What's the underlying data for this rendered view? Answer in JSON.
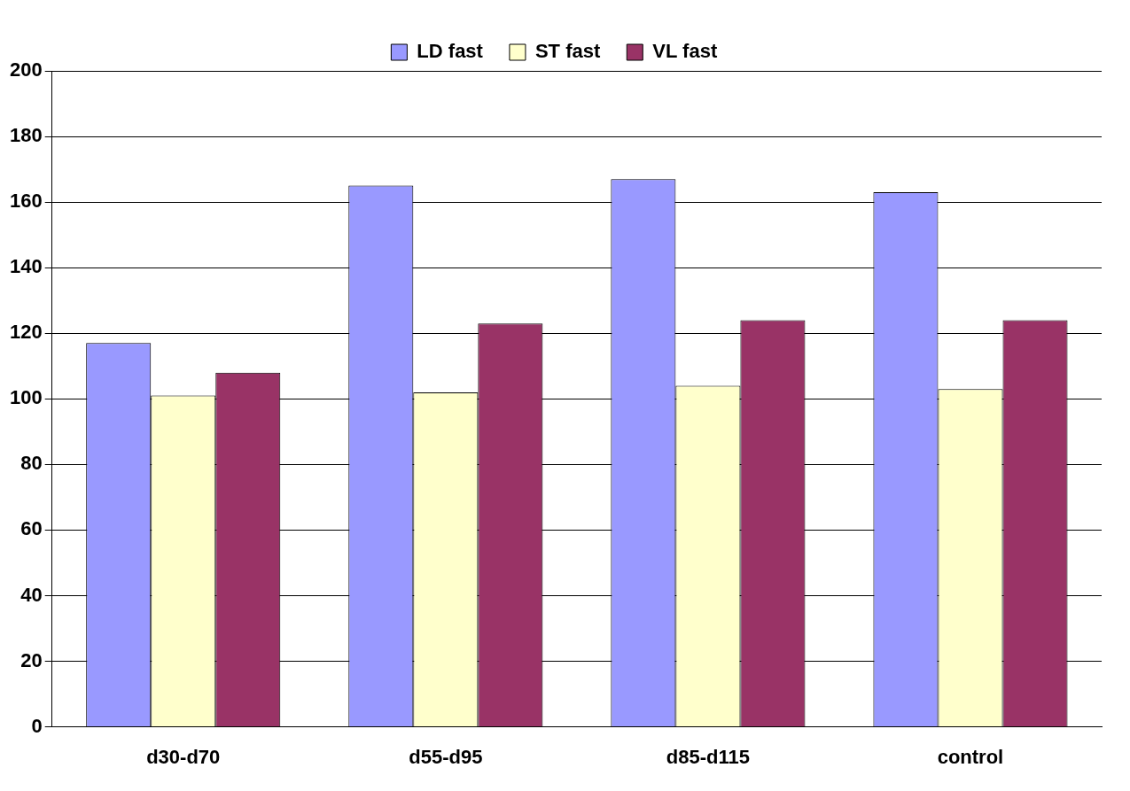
{
  "chart_data": {
    "type": "bar",
    "categories": [
      "d30-d70",
      "d55-d95",
      "d85-d115",
      "control"
    ],
    "series": [
      {
        "name": "LD fast",
        "color": "#9999ff",
        "values": [
          117,
          165,
          167,
          163
        ]
      },
      {
        "name": "ST fast",
        "color": "#ffffcc",
        "values": [
          101,
          102,
          104,
          103
        ]
      },
      {
        "name": "VL fast",
        "color": "#993366",
        "values": [
          108,
          123,
          124,
          124
        ]
      }
    ],
    "ylim": [
      0,
      200
    ],
    "yticks": [
      0,
      20,
      40,
      60,
      80,
      100,
      120,
      140,
      160,
      180,
      200
    ],
    "grid": "y",
    "legend": "top"
  }
}
